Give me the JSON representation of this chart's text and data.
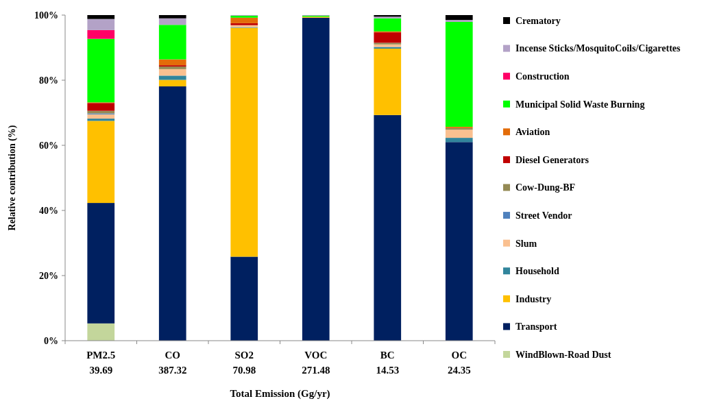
{
  "chart_data": {
    "type": "bar",
    "stacked": true,
    "xlabel": "Total Emission (Gg/yr)",
    "ylabel": "Relative contribution (%)",
    "categories": [
      "PM2.5\n39.69",
      "CO\n387.32",
      "SO2\n70.98",
      "VOC\n271.48",
      "BC\n14.53",
      "OC\n24.35"
    ],
    "ylim": [
      0,
      100
    ],
    "yticks": [
      {
        "value": 0,
        "label": "0%"
      },
      {
        "value": 20,
        "label": "20%"
      },
      {
        "value": 40,
        "label": "40%"
      },
      {
        "value": 60,
        "label": "60%"
      },
      {
        "value": 80,
        "label": "80%"
      },
      {
        "value": 100,
        "label": "100%"
      }
    ],
    "grid": false,
    "legend": "right",
    "series": [
      {
        "name": "WindBlown-Road Dust",
        "color": "#c3d69b",
        "values": [
          5.3,
          0,
          0,
          0,
          0,
          0
        ]
      },
      {
        "name": "Transport",
        "color": "#002060",
        "values": [
          37,
          78.1,
          25.8,
          99.2,
          69.3,
          61
        ]
      },
      {
        "name": "Industry",
        "color": "#ffc000",
        "values": [
          25.2,
          2,
          70.3,
          0.3,
          20.4,
          0
        ]
      },
      {
        "name": "Household",
        "color": "#31859c",
        "values": [
          0.7,
          1.3,
          0.2,
          0,
          0.5,
          1.3
        ]
      },
      {
        "name": "Slum",
        "color": "#fac090",
        "values": [
          1.3,
          2,
          0.6,
          0,
          0.8,
          2.5
        ]
      },
      {
        "name": "Street Vendor",
        "color": "#4f81bd",
        "values": [
          0.3,
          0,
          0,
          0,
          0,
          0
        ]
      },
      {
        "name": "Cow-Dung-BF",
        "color": "#948a54",
        "values": [
          0.8,
          0.8,
          0,
          0,
          0.5,
          0.5
        ]
      },
      {
        "name": "Diesel Generators",
        "color": "#c00000",
        "values": [
          2.4,
          0.4,
          0.6,
          0,
          3.2,
          0
        ]
      },
      {
        "name": "Aviation",
        "color": "#e36c09",
        "values": [
          0.2,
          1.8,
          1.7,
          0,
          0.3,
          0.4
        ]
      },
      {
        "name": "Municipal Solid Waste Burning",
        "color": "#00ff00",
        "values": [
          19.5,
          10.6,
          0.6,
          0.3,
          4,
          32.2
        ]
      },
      {
        "name": "Construction",
        "color": "#ff0066",
        "values": [
          2.7,
          0,
          0,
          0,
          0,
          0
        ]
      },
      {
        "name": "Incense Sticks/MosquitoCoils/Cigarettes",
        "color": "#b3a2c7",
        "values": [
          3.4,
          2,
          0.2,
          0.2,
          0.5,
          0.6
        ]
      },
      {
        "name": "Crematory",
        "color": "#000000",
        "values": [
          1.2,
          1,
          0,
          0,
          0.5,
          1.5
        ]
      }
    ]
  }
}
